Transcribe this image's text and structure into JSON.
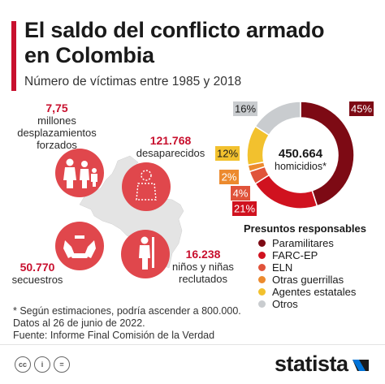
{
  "header": {
    "title_line1": "El saldo del conflicto armado",
    "title_line2": "en Colombia",
    "subtitle": "Número de víctimas entre 1985 y 2018"
  },
  "stats": {
    "displacement": {
      "value": "7,75",
      "label_1": "millones",
      "label_2": "desplazamientos",
      "label_3": "forzados",
      "icon": "family-icon"
    },
    "disappeared": {
      "value": "121.768",
      "label_1": "desaparecidos",
      "icon": "silhouette-icon"
    },
    "kidnapped": {
      "value": "50.770",
      "label_1": "secuestros",
      "icon": "bound-hands-icon"
    },
    "recruited": {
      "value": "16.238",
      "label_1": "niños y niñas",
      "label_2": "reclutados",
      "icon": "child-soldier-icon"
    }
  },
  "map_icon": "colombia-map-icon",
  "chart_data": {
    "type": "pie",
    "title": "",
    "center_value": "450.664",
    "center_label": "homicidios*",
    "legend_title": "Presuntos responsables",
    "legend_position": "bottom",
    "slices": [
      {
        "name": "Paramilitares",
        "value": 45,
        "label": "45%",
        "color": "#7d0a14"
      },
      {
        "name": "FARC-EP",
        "value": 21,
        "label": "21%",
        "color": "#d0121f"
      },
      {
        "name": "ELN",
        "value": 4,
        "label": "4%",
        "color": "#e0533a"
      },
      {
        "name": "Otras guerrillas",
        "value": 2,
        "label": "2%",
        "color": "#ec8a2e"
      },
      {
        "name": "Agentes estatales",
        "value": 12,
        "label": "12%",
        "color": "#f2c12e"
      },
      {
        "name": "Otros",
        "value": 16,
        "label": "16%",
        "color": "#c9cccf"
      }
    ]
  },
  "footnote": {
    "line1": "* Según estimaciones, podría ascender a 800.000.",
    "line2": "Datos al 26 de junio de 2022.",
    "line3": "Fuente: Informe Final Comisión de la Verdad"
  },
  "footer": {
    "brand": "statista",
    "cc_1": "cc",
    "cc_2": "i",
    "cc_3": "="
  },
  "colors": {
    "accent": "#c8102e",
    "icon_fill": "#e0474c",
    "map_fill": "#e4e4e4"
  }
}
